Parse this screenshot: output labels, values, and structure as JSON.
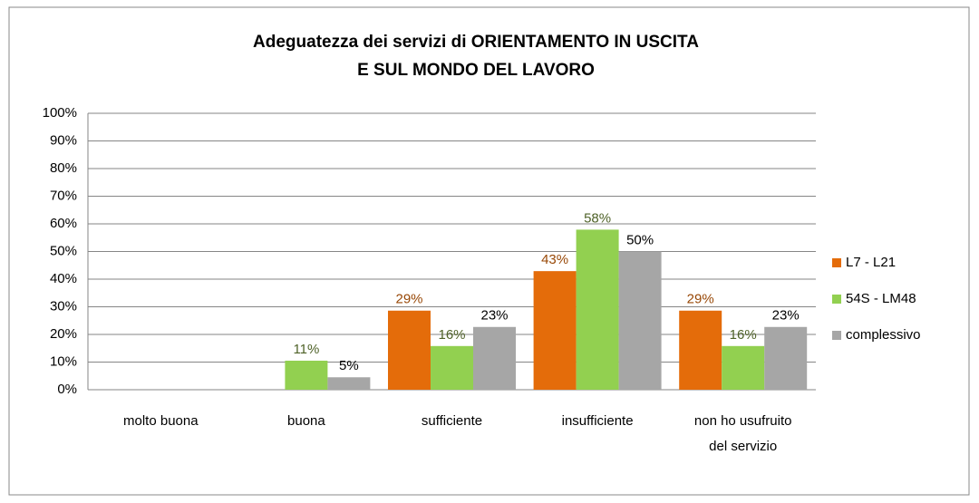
{
  "chart_data": {
    "type": "bar",
    "title": [
      "Adeguatezza dei servizi di ORIENTAMENTO IN USCITA",
      "E SUL MONDO DEL LAVORO"
    ],
    "categories": [
      "molto buona",
      "buona",
      "sufficiente",
      "insufficiente",
      "non ho usufruito del servizio"
    ],
    "series": [
      {
        "name": "L7 - L21",
        "color": "#e46c0a",
        "label_color": "#984807",
        "values": [
          null,
          null,
          28.6,
          42.9,
          28.6
        ],
        "value_labels": [
          null,
          null,
          "29%",
          "43%",
          "29%"
        ]
      },
      {
        "name": "54S - LM48",
        "color": "#92d050",
        "label_color": "#4f6228",
        "values": [
          null,
          10.5,
          15.8,
          57.9,
          15.8
        ],
        "value_labels": [
          null,
          "11%",
          "16%",
          "58%",
          "16%"
        ]
      },
      {
        "name": "complessivo",
        "color": "#a6a6a6",
        "label_color": "#000000",
        "values": [
          null,
          4.5,
          22.7,
          50,
          22.7
        ],
        "value_labels": [
          null,
          "5%",
          "23%",
          "50%",
          "23%"
        ]
      }
    ],
    "ylim": [
      0,
      100
    ],
    "yticks": [
      {
        "value": 0,
        "label": "0%"
      },
      {
        "value": 10,
        "label": "10%"
      },
      {
        "value": 20,
        "label": "20%"
      },
      {
        "value": 30,
        "label": "30%"
      },
      {
        "value": 40,
        "label": "40%"
      },
      {
        "value": 50,
        "label": "50%"
      },
      {
        "value": 60,
        "label": "60%"
      },
      {
        "value": 70,
        "label": "70%"
      },
      {
        "value": 80,
        "label": "80%"
      },
      {
        "value": 90,
        "label": "90%"
      },
      {
        "value": 100,
        "label": "100%"
      }
    ],
    "grid": true,
    "legend": "right"
  }
}
